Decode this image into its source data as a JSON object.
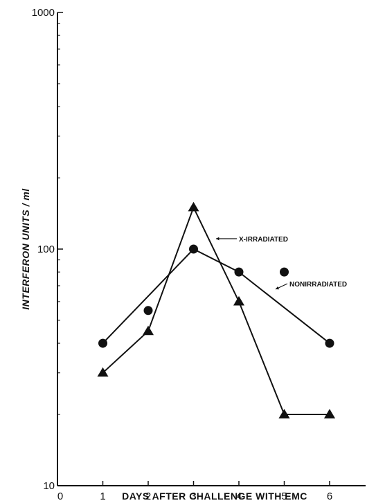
{
  "chart_data": {
    "type": "line",
    "xlabel": "DAYS AFTER CHALLENGE WITH EMC",
    "ylabel": "INTERFERON UNITS / ml",
    "xlim": [
      0,
      7
    ],
    "ylim": [
      10,
      1000
    ],
    "yscale": "log",
    "grid": false,
    "x_ticks": [
      "0",
      "1",
      "2",
      "3",
      "4",
      "5",
      "6"
    ],
    "y_ticks": [
      "10",
      "100",
      "1000"
    ],
    "series": [
      {
        "name": "X-IRRADIATED",
        "marker": "triangle",
        "x": [
          1,
          2,
          3,
          4,
          5,
          6
        ],
        "values": [
          30,
          45,
          150,
          60,
          20,
          20
        ]
      },
      {
        "name": "NONIRRADIATED",
        "marker": "circle",
        "x": [
          1,
          2,
          3,
          4,
          5,
          6
        ],
        "values": [
          40,
          55,
          100,
          80,
          80,
          40
        ],
        "connected": [
          1,
          3,
          4,
          6
        ]
      }
    ],
    "annotations": [
      {
        "text": "X-IRRADIATED",
        "series": "X-IRRADIATED"
      },
      {
        "text": "NONIRRADIATED",
        "series": "NONIRRADIATED"
      }
    ]
  }
}
